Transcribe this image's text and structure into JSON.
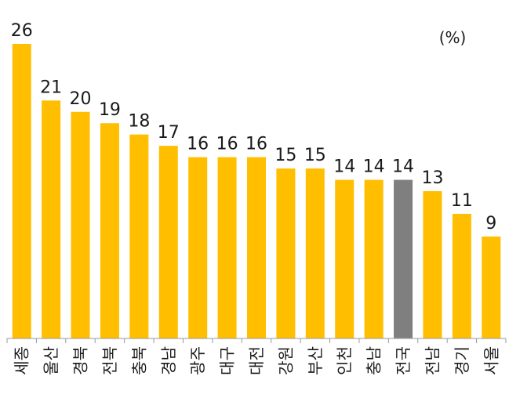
{
  "chart_data": {
    "type": "bar",
    "unit": "(%)",
    "categories": [
      "세종",
      "울산",
      "경북",
      "전북",
      "충북",
      "경남",
      "광주",
      "대구",
      "대전",
      "강원",
      "부산",
      "인천",
      "충남",
      "전국",
      "전남",
      "경기",
      "서울"
    ],
    "values": [
      26,
      21,
      20,
      19,
      18,
      17,
      16,
      16,
      16,
      15,
      15,
      14,
      14,
      14,
      13,
      11,
      9
    ],
    "ylim": [
      0,
      26
    ],
    "grid": false,
    "colors": {
      "bar": "#FFBE00",
      "highlight": "#7F7F7F",
      "axis": "#999999"
    },
    "highlight_category": "전국"
  }
}
